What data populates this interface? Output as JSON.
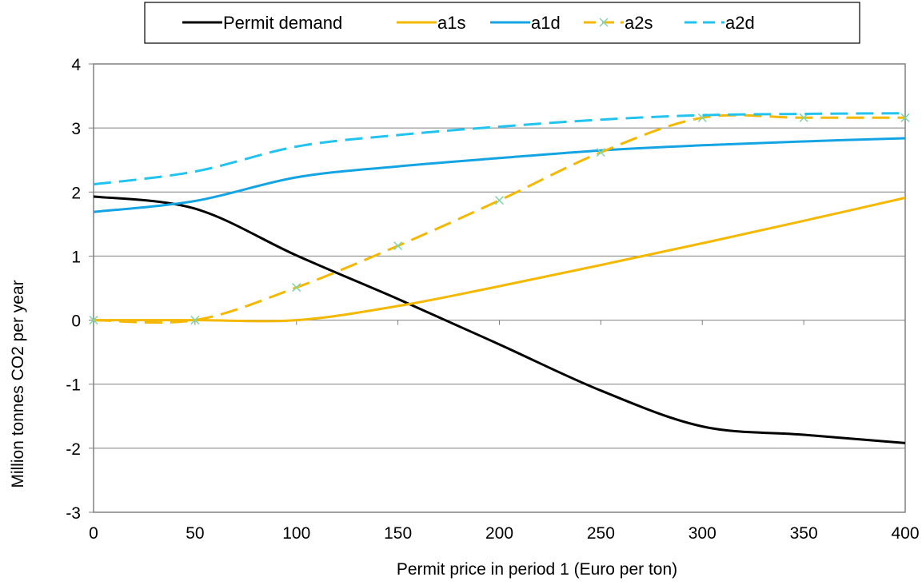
{
  "chart_data": {
    "type": "line",
    "title": "",
    "xlabel": "Permit price in period 1 (Euro per ton)",
    "ylabel": "Million tonnes CO2 per year",
    "xlim": [
      0,
      400
    ],
    "ylim": [
      -3,
      4
    ],
    "x_ticks": [
      0,
      50,
      100,
      150,
      200,
      250,
      300,
      350,
      400
    ],
    "y_ticks": [
      4,
      3,
      2,
      1,
      0,
      -1,
      -2,
      -3
    ],
    "grid": "horizontal",
    "legend_position": "top-center",
    "x": [
      0,
      50,
      100,
      150,
      200,
      250,
      300,
      350,
      400
    ],
    "series": [
      {
        "name": "Permit demand",
        "color": "#000000",
        "style": "solid",
        "markers": false,
        "values": [
          1.93,
          1.74,
          1.01,
          0.33,
          -0.38,
          -1.1,
          -1.66,
          -1.79,
          -1.92
        ]
      },
      {
        "name": "a1s",
        "color": "#F5B800",
        "style": "solid",
        "markers": false,
        "values": [
          0.0,
          0.0,
          0.0,
          0.22,
          0.53,
          0.86,
          1.2,
          1.55,
          1.91
        ]
      },
      {
        "name": "a1d",
        "color": "#14A4E3",
        "style": "solid",
        "markers": false,
        "values": [
          1.69,
          1.86,
          2.23,
          2.4,
          2.53,
          2.65,
          2.73,
          2.79,
          2.84
        ]
      },
      {
        "name": "a2s",
        "color": "#F5B800",
        "style": "dashed",
        "markers": true,
        "marker_color": "#7FD6A8",
        "values": [
          0.0,
          0.0,
          0.51,
          1.16,
          1.87,
          2.62,
          3.16,
          3.16,
          3.16
        ]
      },
      {
        "name": "a2d",
        "color": "#22C3EE",
        "style": "dashed",
        "markers": false,
        "values": [
          2.12,
          2.32,
          2.71,
          2.89,
          3.02,
          3.13,
          3.2,
          3.22,
          3.23
        ]
      }
    ]
  }
}
